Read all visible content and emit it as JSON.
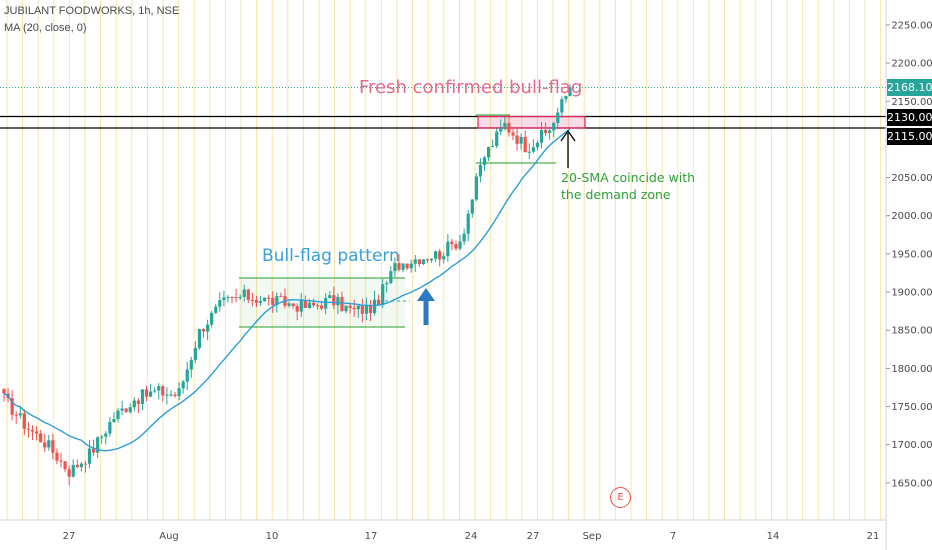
{
  "header": {
    "symbol_line": "JUBILANT FOODWORKS, 1h, NSE",
    "indicator_line": "MA (20, close, 0)"
  },
  "colors": {
    "up": "#26a69a",
    "down": "#ef5350",
    "sma": "#2b9ed8",
    "grid_vertical": "#f6e7a6",
    "level_line": "#000000",
    "last_price_line": "#26a69a",
    "flag_channel": "#4caf50",
    "demand_zone": "#e91e63",
    "bull_flag_text": "#3aa0d8",
    "fresh_flag_text": "#e46a8c",
    "sma_note_text": "#2e9e3c"
  },
  "annotations": {
    "bull_flag": "Bull-flag pattern",
    "fresh_flag": "Fresh confirmed bull-flag",
    "sma_note_line1": "20-SMA coincide with",
    "sma_note_line2": "the demand zone",
    "earnings_marker": "E"
  },
  "price_tags": {
    "last": "2168.10",
    "level_high": "2130.00",
    "level_low": "2115.00"
  },
  "chart_data": {
    "type": "candlestick",
    "symbol": "JUBILANT FOODWORKS",
    "interval": "1h",
    "exchange": "NSE",
    "indicators": [
      "MA (20, close, 0)"
    ],
    "x_ticks": [
      "27",
      "Aug",
      "10",
      "17",
      "24",
      "27",
      "Sep",
      "7",
      "14",
      "21"
    ],
    "y_ticks": [
      1650,
      1700,
      1750,
      1800,
      1850,
      1900,
      1950,
      2000,
      2050,
      2100,
      2150,
      2200,
      2250
    ],
    "ylim": [
      1600,
      2280
    ],
    "grid": "vertical",
    "horizontal_levels": [
      2130.0,
      2115.0
    ],
    "last_price": 2168.1,
    "approx_close_path": [
      {
        "x": "Jul 23",
        "y": 1760
      },
      {
        "x": "Jul 24",
        "y": 1725
      },
      {
        "x": "Jul 27",
        "y": 1700
      },
      {
        "x": "Jul 28",
        "y": 1665
      },
      {
        "x": "Jul 29",
        "y": 1690
      },
      {
        "x": "Jul 30",
        "y": 1735
      },
      {
        "x": "Jul 31",
        "y": 1760
      },
      {
        "x": "Aug 3",
        "y": 1770
      },
      {
        "x": "Aug 4",
        "y": 1765
      },
      {
        "x": "Aug 5",
        "y": 1850
      },
      {
        "x": "Aug 6",
        "y": 1885
      },
      {
        "x": "Aug 7",
        "y": 1895
      },
      {
        "x": "Aug 10",
        "y": 1890
      },
      {
        "x": "Aug 11",
        "y": 1885
      },
      {
        "x": "Aug 12",
        "y": 1880
      },
      {
        "x": "Aug 13",
        "y": 1890
      },
      {
        "x": "Aug 14",
        "y": 1875
      },
      {
        "x": "Aug 17",
        "y": 1880
      },
      {
        "x": "Aug 18",
        "y": 1935
      },
      {
        "x": "Aug 19",
        "y": 1945
      },
      {
        "x": "Aug 20",
        "y": 1950
      },
      {
        "x": "Aug 21",
        "y": 1970
      },
      {
        "x": "Aug 24",
        "y": 2075
      },
      {
        "x": "Aug 25",
        "y": 2120
      },
      {
        "x": "Aug 26",
        "y": 2090
      },
      {
        "x": "Aug 27",
        "y": 2110
      },
      {
        "x": "Aug 28",
        "y": 2168.1
      }
    ]
  }
}
